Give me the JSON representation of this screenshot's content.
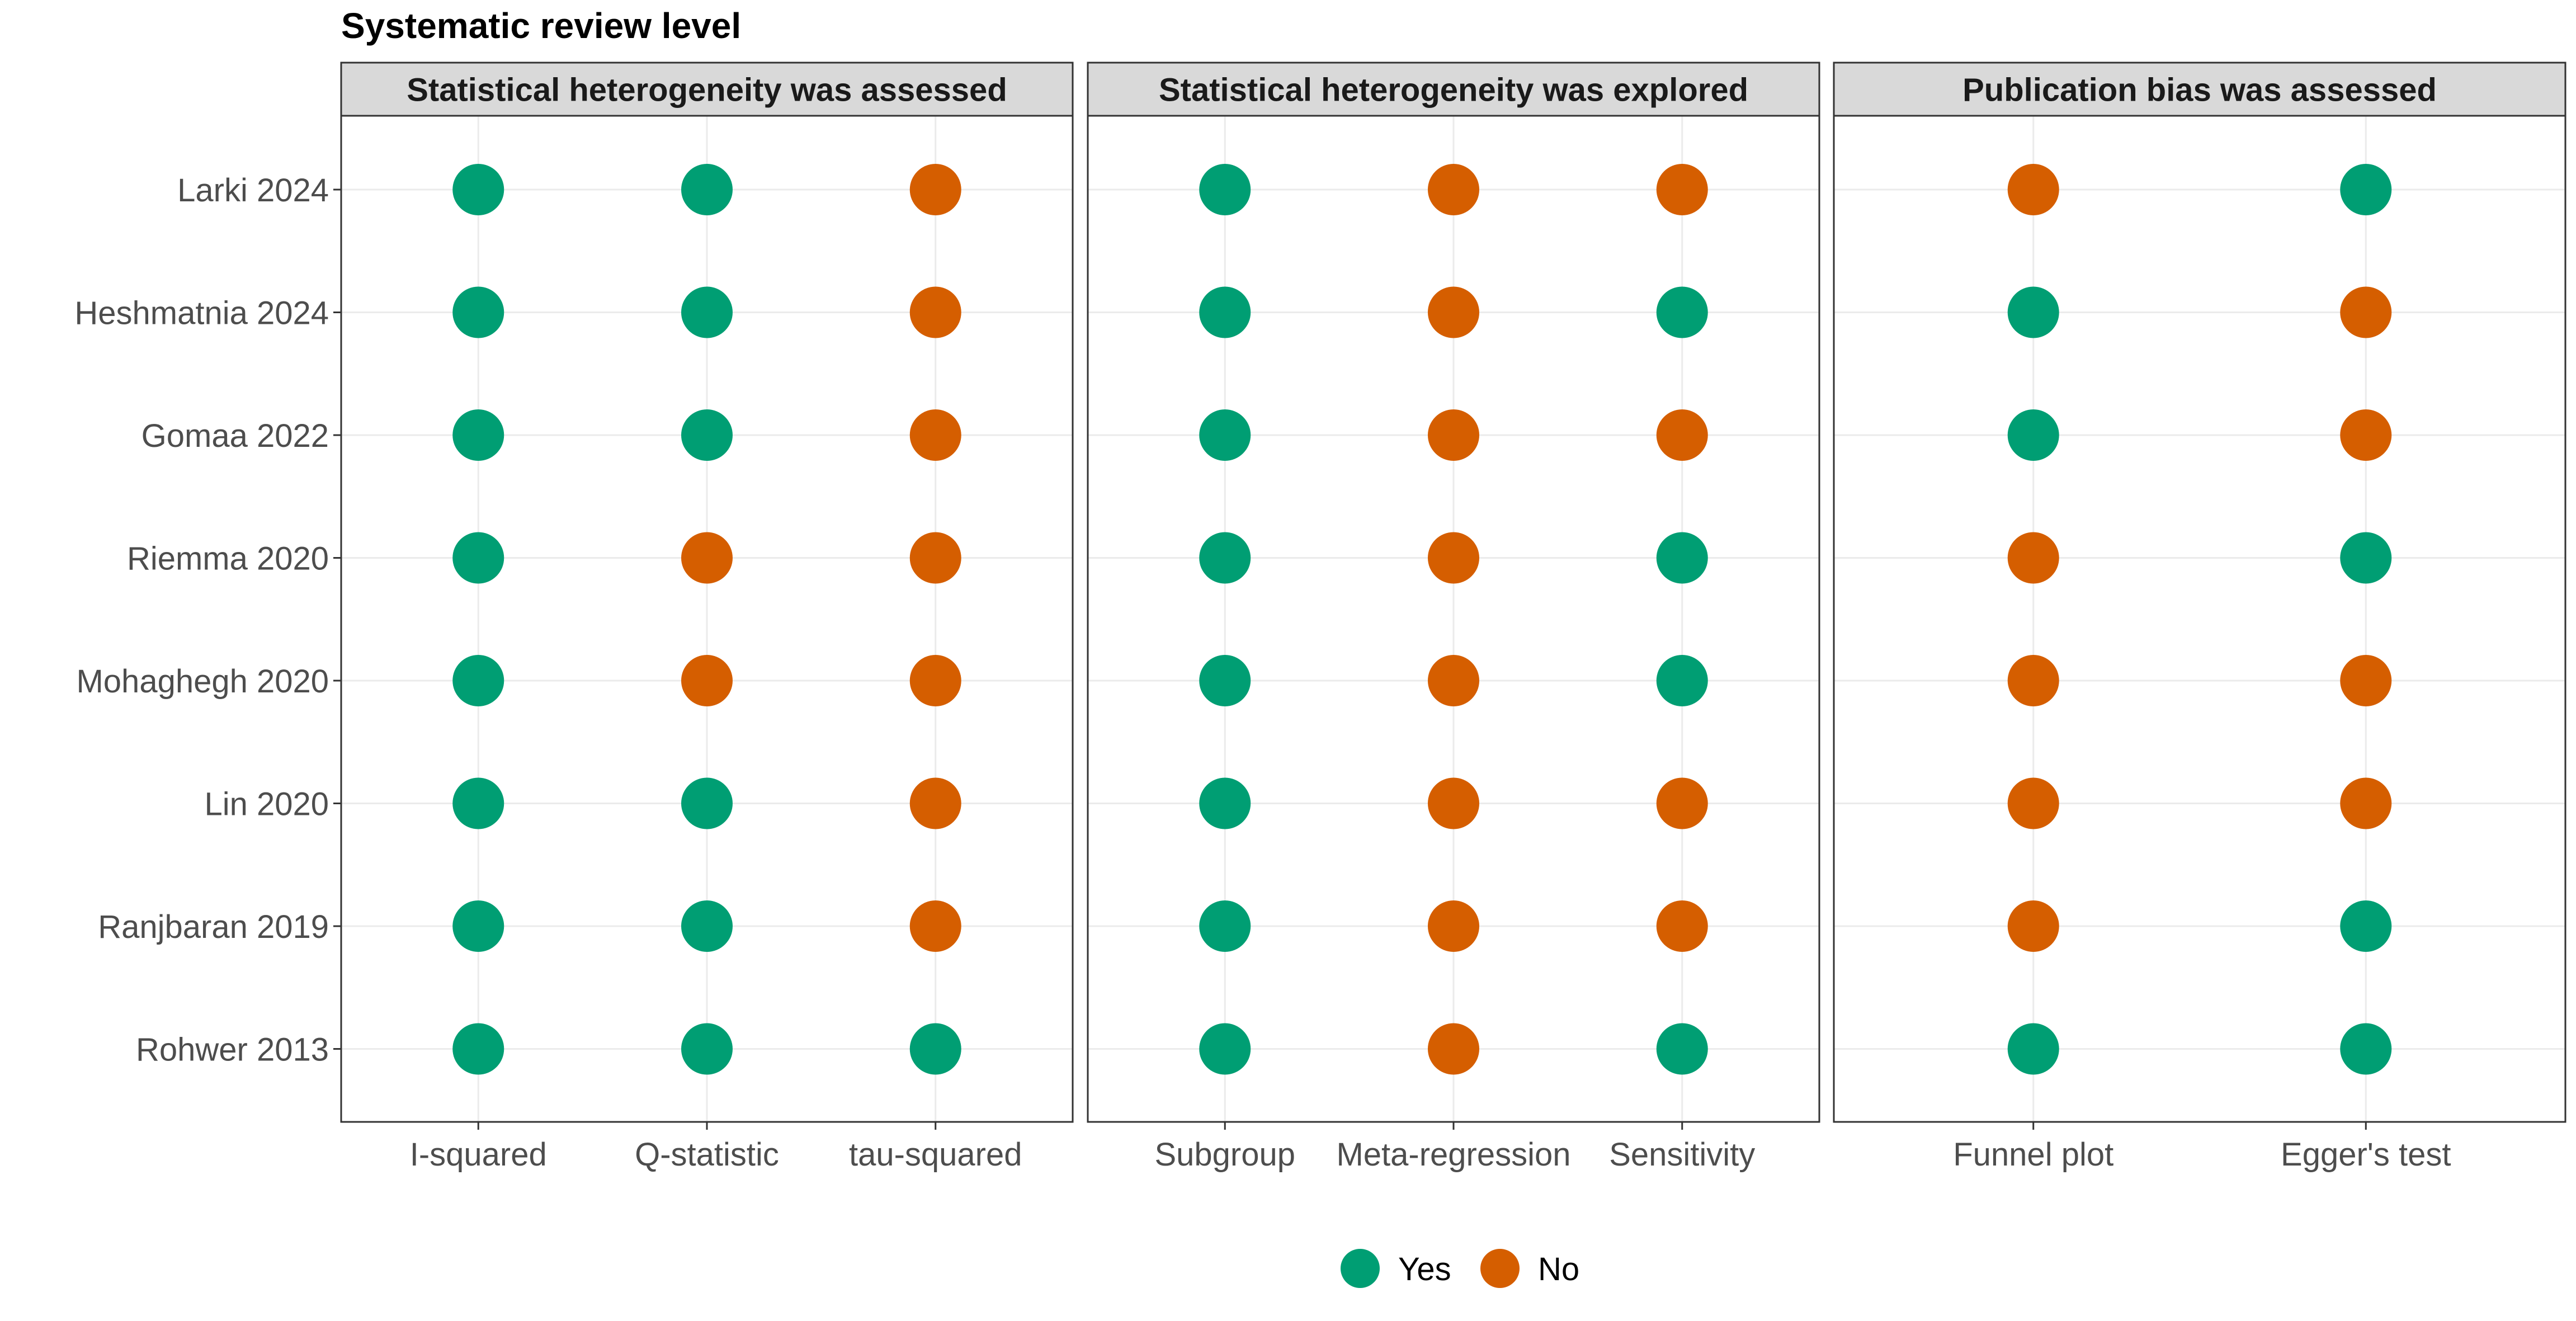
{
  "chart_data": {
    "type": "scatter",
    "title": "Systematic review level",
    "studies": [
      "Larki 2024",
      "Heshmatnia 2024",
      "Gomaa 2022",
      "Riemma 2020",
      "Mohaghegh 2020",
      "Lin 2020",
      "Ranjbaran 2019",
      "Rohwer 2013"
    ],
    "panels": [
      {
        "label": "Statistical heterogeneity was assessed",
        "categories": [
          "I-squared",
          "Q-statistic",
          "tau-squared"
        ],
        "values": [
          [
            "Yes",
            "Yes",
            "No"
          ],
          [
            "Yes",
            "Yes",
            "No"
          ],
          [
            "Yes",
            "Yes",
            "No"
          ],
          [
            "Yes",
            "No",
            "No"
          ],
          [
            "Yes",
            "No",
            "No"
          ],
          [
            "Yes",
            "Yes",
            "No"
          ],
          [
            "Yes",
            "Yes",
            "No"
          ],
          [
            "Yes",
            "Yes",
            "Yes"
          ]
        ]
      },
      {
        "label": "Statistical heterogeneity was explored",
        "categories": [
          "Subgroup",
          "Meta-regression",
          "Sensitivity"
        ],
        "values": [
          [
            "Yes",
            "No",
            "No"
          ],
          [
            "Yes",
            "No",
            "Yes"
          ],
          [
            "Yes",
            "No",
            "No"
          ],
          [
            "Yes",
            "No",
            "Yes"
          ],
          [
            "Yes",
            "No",
            "Yes"
          ],
          [
            "Yes",
            "No",
            "No"
          ],
          [
            "Yes",
            "No",
            "No"
          ],
          [
            "Yes",
            "No",
            "Yes"
          ]
        ]
      },
      {
        "label": "Publication bias was assessed",
        "categories": [
          "Funnel plot",
          "Egger's test"
        ],
        "values": [
          [
            "No",
            "Yes"
          ],
          [
            "Yes",
            "No"
          ],
          [
            "Yes",
            "No"
          ],
          [
            "No",
            "Yes"
          ],
          [
            "No",
            "No"
          ],
          [
            "No",
            "No"
          ],
          [
            "No",
            "Yes"
          ],
          [
            "Yes",
            "Yes"
          ]
        ]
      }
    ],
    "legend": {
      "position": "bottom",
      "items": [
        {
          "label": "Yes",
          "color": "#009E73"
        },
        {
          "label": "No",
          "color": "#D55E00"
        }
      ]
    },
    "grid": true
  }
}
